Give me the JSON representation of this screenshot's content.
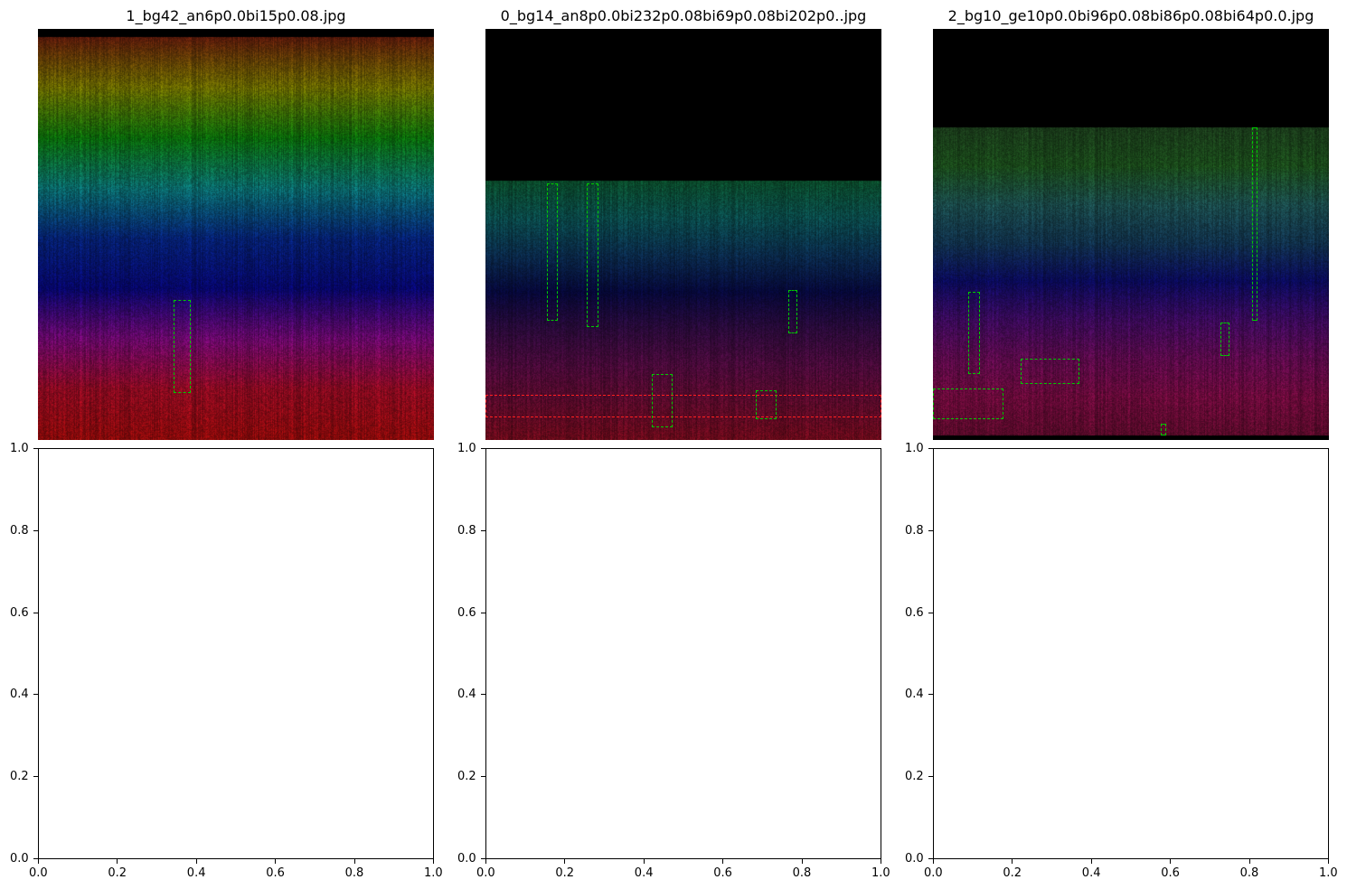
{
  "chart_data": [
    {
      "type": "image",
      "title": "1_bg42_an6p0.0bi15p0.08.jpg",
      "axes_visible": false,
      "image": {
        "blank_band_top": 0.02,
        "blank_band_bottom": 0.0,
        "texture": "vertical-stripes",
        "gradient_top_to_bottom": [
          "#5a1a0a",
          "#6a6a00",
          "#0a6a0a",
          "#0a6a6a",
          "#052070",
          "#06066a",
          "#6a086a",
          "#8a0a20",
          "#8a0a0a"
        ]
      },
      "boxes": [
        {
          "color": "green",
          "x": [
            0.343,
            0.385
          ],
          "y": [
            0.66,
            0.885
          ]
        }
      ]
    },
    {
      "type": "image",
      "title": "0_bg14_an8p0.0bi232p0.08bi69p0.08bi202p0..jpg",
      "axes_visible": false,
      "image": {
        "blank_band_top": 0.37,
        "blank_band_bottom": 0.0,
        "texture": "vertical-stripes",
        "gradient_top_to_bottom": [
          "#0a4a2a",
          "#0a4a4a",
          "#0a2a4a",
          "#06083a",
          "#2a0a3a",
          "#4a0a3a",
          "#5a0a2a",
          "#6a0a1a"
        ]
      },
      "boxes": [
        {
          "color": "green",
          "x": [
            0.155,
            0.182
          ],
          "y": [
            0.375,
            0.71
          ]
        },
        {
          "color": "green",
          "x": [
            0.255,
            0.285
          ],
          "y": [
            0.375,
            0.725
          ]
        },
        {
          "color": "green",
          "x": [
            0.765,
            0.788
          ],
          "y": [
            0.635,
            0.74
          ]
        },
        {
          "color": "red",
          "x": [
            0.0,
            1.0
          ],
          "y": [
            0.89,
            0.945
          ]
        },
        {
          "color": "green",
          "x": [
            0.42,
            0.472
          ],
          "y": [
            0.84,
            0.97
          ]
        },
        {
          "color": "green",
          "x": [
            0.682,
            0.735
          ],
          "y": [
            0.88,
            0.95
          ]
        }
      ]
    },
    {
      "type": "image",
      "title": "2_bg10_ge10p0.0bi96p0.08bi86p0.08bi64p0.0.jpg",
      "axes_visible": false,
      "image": {
        "blank_band_top": 0.24,
        "blank_band_bottom": 0.012,
        "texture": "vertical-stripes",
        "gradient_top_to_bottom": [
          "#1a3a1a",
          "#1a4a1a",
          "#1a4a4a",
          "#10304a",
          "#0a0a5a",
          "#3a0a5a",
          "#5a0a4a",
          "#6a0a3a",
          "#5a0a2a"
        ]
      },
      "boxes": [
        {
          "color": "green",
          "x": [
            0.088,
            0.118
          ],
          "y": [
            0.64,
            0.84
          ]
        },
        {
          "color": "green",
          "x": [
            0.222,
            0.37
          ],
          "y": [
            0.803,
            0.863
          ]
        },
        {
          "color": "green",
          "x": [
            0.0,
            0.178
          ],
          "y": [
            0.875,
            0.95
          ]
        },
        {
          "color": "green",
          "x": [
            0.725,
            0.75
          ],
          "y": [
            0.715,
            0.795
          ]
        },
        {
          "color": "green",
          "x": [
            0.805,
            0.82
          ],
          "y": [
            0.24,
            0.71
          ]
        },
        {
          "color": "green",
          "x": [
            0.575,
            0.59
          ],
          "y": [
            0.96,
            0.99
          ]
        }
      ]
    },
    {
      "type": "empty",
      "title": "",
      "xlim": [
        0.0,
        1.0
      ],
      "ylim": [
        0.0,
        1.0
      ],
      "xticks": [
        "0.0",
        "0.2",
        "0.4",
        "0.6",
        "0.8",
        "1.0"
      ],
      "yticks": [
        "0.0",
        "0.2",
        "0.4",
        "0.6",
        "0.8",
        "1.0"
      ]
    },
    {
      "type": "empty",
      "title": "",
      "xlim": [
        0.0,
        1.0
      ],
      "ylim": [
        0.0,
        1.0
      ],
      "xticks": [
        "0.0",
        "0.2",
        "0.4",
        "0.6",
        "0.8",
        "1.0"
      ],
      "yticks": [
        "0.0",
        "0.2",
        "0.4",
        "0.6",
        "0.8",
        "1.0"
      ]
    },
    {
      "type": "empty",
      "title": "",
      "xlim": [
        0.0,
        1.0
      ],
      "ylim": [
        0.0,
        1.0
      ],
      "xticks": [
        "0.0",
        "0.2",
        "0.4",
        "0.6",
        "0.8",
        "1.0"
      ],
      "yticks": [
        "0.0",
        "0.2",
        "0.4",
        "0.6",
        "0.8",
        "1.0"
      ]
    }
  ]
}
